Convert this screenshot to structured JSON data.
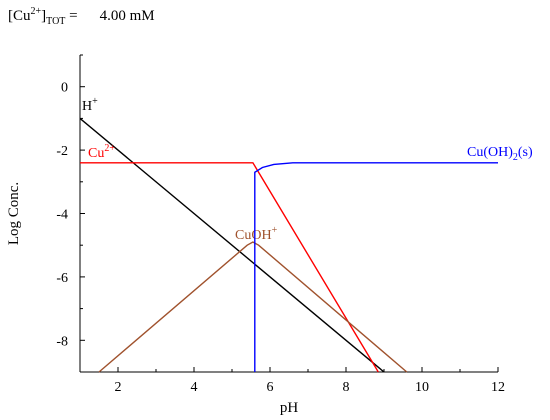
{
  "header": {
    "species": "[Cu",
    "charge": "2+",
    "bracket": "]",
    "subscript": "TOT",
    "equals": " =",
    "value": "4.00 mM"
  },
  "chart_data": {
    "type": "line",
    "xlabel": "pH",
    "ylabel": "Log Conc.",
    "xlim": [
      1,
      12
    ],
    "ylim": [
      -9,
      1
    ],
    "xticks": [
      2,
      4,
      6,
      8,
      10,
      12
    ],
    "yticks": [
      0,
      -2,
      -4,
      -6,
      -8
    ],
    "grid": false,
    "legend": "none",
    "series": [
      {
        "name": "H⁺",
        "label_parts": [
          "H",
          "+"
        ],
        "color": "#000000",
        "points": [
          [
            1,
            -1
          ],
          [
            9,
            -9
          ]
        ]
      },
      {
        "name": "Cu²⁺",
        "label_parts": [
          "Cu",
          "2+"
        ],
        "color": "#ff0000",
        "points": [
          [
            1,
            -2.4
          ],
          [
            5.55,
            -2.4
          ],
          [
            8.85,
            -9
          ]
        ]
      },
      {
        "name": "CuOH⁺",
        "label_parts": [
          "CuOH",
          "+"
        ],
        "color": "#a0522d",
        "points": [
          [
            1.5,
            -9
          ],
          [
            5.4,
            -5
          ],
          [
            5.55,
            -4.9
          ],
          [
            5.7,
            -5
          ],
          [
            9.6,
            -9
          ]
        ]
      },
      {
        "name": "Cu(OH)₂(s)",
        "label_parts": [
          "Cu(OH)",
          "2",
          "(s)"
        ],
        "color": "#0000ff",
        "points": [
          [
            5.6,
            -9
          ],
          [
            5.6,
            -2.7
          ],
          [
            5.8,
            -2.55
          ],
          [
            6.1,
            -2.45
          ],
          [
            6.6,
            -2.4
          ],
          [
            12,
            -2.4
          ]
        ]
      }
    ]
  }
}
